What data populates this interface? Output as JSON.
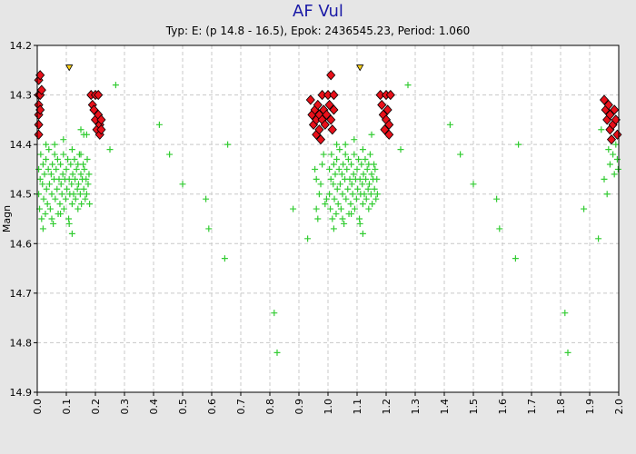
{
  "chart_data": {
    "type": "scatter",
    "title": "AF Vul",
    "subtitle": "Typ: E: (p 14.8 - 16.5), Epok: 2436545.23, Period: 1.060",
    "xlabel": "",
    "ylabel": "Magn",
    "xlim": [
      0,
      2
    ],
    "ylim": [
      14.2,
      14.9
    ],
    "y_inverted": true,
    "grid": true,
    "x_ticks": [
      "0.0",
      "0.1",
      "0.2",
      "0.3",
      "0.4",
      "0.5",
      "0.6",
      "0.7",
      "0.8",
      "0.9",
      "1.0",
      "1.1",
      "1.2",
      "1.3",
      "1.4",
      "1.5",
      "1.6",
      "1.7",
      "1.8",
      "1.9",
      "2.0"
    ],
    "y_ticks": [
      "14.2",
      "14.3",
      "14.4",
      "14.5",
      "14.6",
      "14.7",
      "14.8",
      "14.9"
    ],
    "colors": {
      "red_series": "#e8101a",
      "green_series": "#33cc33",
      "upper_limit": "#ffd21a",
      "background": "#e6e6e6",
      "plot_bg": "#ffffff"
    },
    "series": [
      {
        "marker": "diamond",
        "color": "#e8101a",
        "points": [
          [
            0.005,
            14.27
          ],
          [
            0.005,
            14.3
          ],
          [
            0.005,
            14.32
          ],
          [
            0.005,
            14.34
          ],
          [
            0.005,
            14.36
          ],
          [
            0.005,
            14.38
          ],
          [
            0.01,
            14.26
          ],
          [
            0.01,
            14.3
          ],
          [
            0.01,
            14.33
          ],
          [
            0.015,
            14.29
          ],
          [
            0.185,
            14.3
          ],
          [
            0.19,
            14.32
          ],
          [
            0.195,
            14.33
          ],
          [
            0.2,
            14.3
          ],
          [
            0.2,
            14.35
          ],
          [
            0.205,
            14.37
          ],
          [
            0.21,
            14.3
          ],
          [
            0.21,
            14.34
          ],
          [
            0.215,
            14.36
          ],
          [
            0.215,
            14.38
          ],
          [
            0.22,
            14.35
          ],
          [
            0.22,
            14.37
          ],
          [
            0.94,
            14.31
          ],
          [
            0.945,
            14.34
          ],
          [
            0.95,
            14.36
          ],
          [
            0.955,
            14.33
          ],
          [
            0.96,
            14.35
          ],
          [
            0.96,
            14.38
          ],
          [
            0.965,
            14.32
          ],
          [
            0.97,
            14.34
          ],
          [
            0.97,
            14.37
          ],
          [
            0.975,
            14.39
          ],
          [
            0.98,
            14.3
          ],
          [
            0.98,
            14.35
          ],
          [
            0.985,
            14.33
          ],
          [
            0.99,
            14.36
          ],
          [
            0.995,
            14.34
          ],
          [
            1.0,
            14.3
          ],
          [
            1.005,
            14.32
          ],
          [
            1.01,
            14.26
          ],
          [
            1.01,
            14.35
          ],
          [
            1.015,
            14.37
          ],
          [
            1.02,
            14.33
          ],
          [
            1.02,
            14.3
          ],
          [
            1.18,
            14.3
          ],
          [
            1.185,
            14.32
          ],
          [
            1.19,
            14.34
          ],
          [
            1.195,
            14.37
          ],
          [
            1.2,
            14.3
          ],
          [
            1.2,
            14.35
          ],
          [
            1.205,
            14.33
          ],
          [
            1.21,
            14.36
          ],
          [
            1.21,
            14.38
          ],
          [
            1.215,
            14.3
          ],
          [
            1.95,
            14.31
          ],
          [
            1.955,
            14.33
          ],
          [
            1.96,
            14.35
          ],
          [
            1.965,
            14.32
          ],
          [
            1.97,
            14.34
          ],
          [
            1.97,
            14.37
          ],
          [
            1.975,
            14.39
          ],
          [
            1.98,
            14.36
          ],
          [
            1.985,
            14.33
          ],
          [
            1.99,
            14.35
          ],
          [
            1.995,
            14.38
          ]
        ]
      },
      {
        "marker": "plus",
        "color": "#33cc33",
        "points": [
          [
            0.005,
            14.45
          ],
          [
            0.005,
            14.5
          ],
          [
            0.008,
            14.53
          ],
          [
            0.01,
            14.47
          ],
          [
            0.012,
            14.42
          ],
          [
            0.015,
            14.55
          ],
          [
            0.018,
            14.48
          ],
          [
            0.02,
            14.44
          ],
          [
            0.022,
            14.51
          ],
          [
            0.025,
            14.46
          ],
          [
            0.028,
            14.54
          ],
          [
            0.03,
            14.43
          ],
          [
            0.032,
            14.49
          ],
          [
            0.035,
            14.52
          ],
          [
            0.038,
            14.45
          ],
          [
            0.04,
            14.41
          ],
          [
            0.042,
            14.48
          ],
          [
            0.045,
            14.53
          ],
          [
            0.048,
            14.46
          ],
          [
            0.05,
            14.5
          ],
          [
            0.052,
            14.44
          ],
          [
            0.055,
            14.56
          ],
          [
            0.058,
            14.47
          ],
          [
            0.06,
            14.42
          ],
          [
            0.062,
            14.51
          ],
          [
            0.065,
            14.45
          ],
          [
            0.068,
            14.49
          ],
          [
            0.07,
            14.43
          ],
          [
            0.072,
            14.54
          ],
          [
            0.075,
            14.47
          ],
          [
            0.078,
            14.52
          ],
          [
            0.08,
            14.44
          ],
          [
            0.082,
            14.48
          ],
          [
            0.085,
            14.5
          ],
          [
            0.088,
            14.46
          ],
          [
            0.09,
            14.42
          ],
          [
            0.092,
            14.53
          ],
          [
            0.095,
            14.47
          ],
          [
            0.098,
            14.51
          ],
          [
            0.1,
            14.45
          ],
          [
            0.102,
            14.49
          ],
          [
            0.105,
            14.43
          ],
          [
            0.108,
            14.55
          ],
          [
            0.11,
            14.47
          ],
          [
            0.112,
            14.5
          ],
          [
            0.115,
            14.44
          ],
          [
            0.118,
            14.48
          ],
          [
            0.12,
            14.52
          ],
          [
            0.122,
            14.46
          ],
          [
            0.125,
            14.5
          ],
          [
            0.128,
            14.43
          ],
          [
            0.13,
            14.47
          ],
          [
            0.132,
            14.51
          ],
          [
            0.135,
            14.45
          ],
          [
            0.138,
            14.49
          ],
          [
            0.14,
            14.44
          ],
          [
            0.142,
            14.48
          ],
          [
            0.145,
            14.42
          ],
          [
            0.148,
            14.5
          ],
          [
            0.15,
            14.46
          ],
          [
            0.152,
            14.52
          ],
          [
            0.155,
            14.47
          ],
          [
            0.158,
            14.44
          ],
          [
            0.16,
            14.49
          ],
          [
            0.162,
            14.45
          ],
          [
            0.165,
            14.51
          ],
          [
            0.168,
            14.47
          ],
          [
            0.17,
            14.5
          ],
          [
            0.172,
            14.43
          ],
          [
            0.175,
            14.48
          ],
          [
            0.178,
            14.46
          ],
          [
            0.18,
            14.52
          ],
          [
            0.03,
            14.4
          ],
          [
            0.06,
            14.4
          ],
          [
            0.09,
            14.39
          ],
          [
            0.12,
            14.41
          ],
          [
            0.15,
            14.42
          ],
          [
            0.17,
            14.38
          ],
          [
            0.02,
            14.57
          ],
          [
            0.05,
            14.55
          ],
          [
            0.08,
            14.54
          ],
          [
            0.11,
            14.56
          ],
          [
            0.14,
            14.53
          ],
          [
            0.12,
            14.58
          ],
          [
            0.15,
            14.37
          ],
          [
            0.16,
            14.38
          ],
          [
            0.25,
            14.41
          ],
          [
            0.27,
            14.28
          ],
          [
            0.42,
            14.36
          ],
          [
            0.455,
            14.42
          ],
          [
            0.5,
            14.48
          ],
          [
            0.58,
            14.51
          ],
          [
            0.59,
            14.57
          ],
          [
            0.645,
            14.63
          ],
          [
            0.655,
            14.4
          ],
          [
            0.815,
            14.74
          ],
          [
            0.825,
            14.82
          ],
          [
            0.88,
            14.53
          ],
          [
            0.93,
            14.59
          ],
          [
            1.005,
            14.45
          ],
          [
            1.005,
            14.5
          ],
          [
            1.008,
            14.53
          ],
          [
            1.01,
            14.47
          ],
          [
            1.012,
            14.42
          ],
          [
            1.015,
            14.55
          ],
          [
            1.018,
            14.48
          ],
          [
            1.02,
            14.44
          ],
          [
            1.022,
            14.51
          ],
          [
            1.025,
            14.46
          ],
          [
            1.028,
            14.54
          ],
          [
            1.03,
            14.43
          ],
          [
            1.032,
            14.49
          ],
          [
            1.035,
            14.52
          ],
          [
            1.038,
            14.45
          ],
          [
            1.04,
            14.41
          ],
          [
            1.042,
            14.48
          ],
          [
            1.045,
            14.53
          ],
          [
            1.048,
            14.46
          ],
          [
            1.05,
            14.5
          ],
          [
            1.052,
            14.44
          ],
          [
            1.055,
            14.56
          ],
          [
            1.058,
            14.47
          ],
          [
            1.06,
            14.42
          ],
          [
            1.062,
            14.51
          ],
          [
            1.065,
            14.45
          ],
          [
            1.068,
            14.49
          ],
          [
            1.07,
            14.43
          ],
          [
            1.072,
            14.54
          ],
          [
            1.075,
            14.47
          ],
          [
            1.078,
            14.52
          ],
          [
            1.08,
            14.44
          ],
          [
            1.082,
            14.48
          ],
          [
            1.085,
            14.5
          ],
          [
            1.088,
            14.46
          ],
          [
            1.09,
            14.42
          ],
          [
            1.092,
            14.53
          ],
          [
            1.095,
            14.47
          ],
          [
            1.098,
            14.51
          ],
          [
            1.1,
            14.45
          ],
          [
            1.102,
            14.49
          ],
          [
            1.105,
            14.43
          ],
          [
            1.108,
            14.55
          ],
          [
            1.11,
            14.47
          ],
          [
            1.112,
            14.5
          ],
          [
            1.115,
            14.44
          ],
          [
            1.118,
            14.48
          ],
          [
            1.12,
            14.52
          ],
          [
            1.122,
            14.46
          ],
          [
            1.125,
            14.5
          ],
          [
            1.128,
            14.43
          ],
          [
            1.13,
            14.47
          ],
          [
            1.132,
            14.51
          ],
          [
            1.135,
            14.45
          ],
          [
            1.138,
            14.49
          ],
          [
            1.14,
            14.44
          ],
          [
            1.142,
            14.48
          ],
          [
            1.145,
            14.42
          ],
          [
            1.148,
            14.5
          ],
          [
            1.15,
            14.46
          ],
          [
            1.152,
            14.52
          ],
          [
            1.155,
            14.47
          ],
          [
            1.158,
            14.44
          ],
          [
            1.16,
            14.49
          ],
          [
            1.162,
            14.45
          ],
          [
            1.165,
            14.51
          ],
          [
            1.168,
            14.47
          ],
          [
            1.17,
            14.5
          ],
          [
            0.96,
            14.47
          ],
          [
            0.97,
            14.5
          ],
          [
            0.98,
            14.44
          ],
          [
            0.99,
            14.52
          ],
          [
            0.955,
            14.45
          ],
          [
            0.965,
            14.55
          ],
          [
            0.975,
            14.48
          ],
          [
            0.985,
            14.42
          ],
          [
            0.995,
            14.51
          ],
          [
            0.96,
            14.53
          ],
          [
            1.03,
            14.4
          ],
          [
            1.06,
            14.4
          ],
          [
            1.09,
            14.39
          ],
          [
            1.12,
            14.41
          ],
          [
            1.15,
            14.38
          ],
          [
            1.02,
            14.57
          ],
          [
            1.05,
            14.55
          ],
          [
            1.08,
            14.54
          ],
          [
            1.11,
            14.56
          ],
          [
            1.14,
            14.53
          ],
          [
            1.12,
            14.58
          ],
          [
            1.25,
            14.41
          ],
          [
            1.275,
            14.28
          ],
          [
            1.42,
            14.36
          ],
          [
            1.455,
            14.42
          ],
          [
            1.5,
            14.48
          ],
          [
            1.58,
            14.51
          ],
          [
            1.59,
            14.57
          ],
          [
            1.645,
            14.63
          ],
          [
            1.655,
            14.4
          ],
          [
            1.815,
            14.74
          ],
          [
            1.825,
            14.82
          ],
          [
            1.88,
            14.53
          ],
          [
            1.93,
            14.59
          ],
          [
            1.94,
            14.37
          ],
          [
            1.95,
            14.47
          ],
          [
            1.96,
            14.5
          ],
          [
            1.965,
            14.41
          ],
          [
            1.97,
            14.44
          ],
          [
            1.975,
            14.39
          ],
          [
            1.98,
            14.42
          ],
          [
            1.985,
            14.46
          ],
          [
            1.99,
            14.4
          ],
          [
            1.995,
            14.43
          ],
          [
            1.998,
            14.45
          ]
        ]
      },
      {
        "marker": "triangle-down",
        "color": "#ffd21a",
        "points": [
          [
            0.11,
            14.245
          ],
          [
            1.11,
            14.245
          ]
        ]
      }
    ]
  }
}
